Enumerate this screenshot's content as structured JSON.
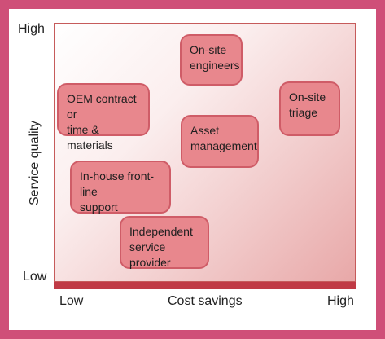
{
  "axes": {
    "y_title": "Service quality",
    "x_title": "Cost savings",
    "y_high": "High",
    "y_low": "Low",
    "x_low": "Low",
    "x_high": "High"
  },
  "nodes": {
    "onsite_engineers": "On-site\nengineers",
    "oem_contract": "OEM contract or\ntime & materials",
    "onsite_triage": "On-site\ntriage",
    "asset_management": "Asset\nmanagement",
    "inhouse_support": "In-house front-line\nsupport",
    "independent_provider": "Independent\nservice provider"
  },
  "colors": {
    "frame": "#cf4f78",
    "node_fill": "#e8878d",
    "node_border": "#cf5c67",
    "baseline": "#c03a45"
  }
}
